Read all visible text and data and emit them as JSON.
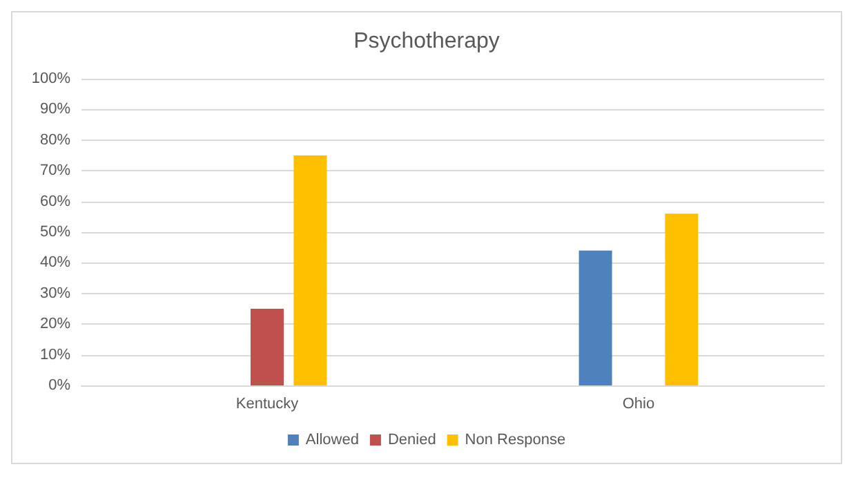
{
  "chart_data": {
    "type": "bar",
    "title": "Psychotherapy",
    "categories": [
      "Kentucky",
      "Ohio"
    ],
    "series": [
      {
        "name": "Allowed",
        "color": "#4f81bd",
        "values": [
          0,
          44
        ]
      },
      {
        "name": "Denied",
        "color": "#c0504d",
        "values": [
          25,
          0
        ]
      },
      {
        "name": "Non Response",
        "color": "#ffc000",
        "values": [
          75,
          56
        ]
      }
    ],
    "ylim": [
      0,
      100
    ],
    "yticks": [
      {
        "value": 0,
        "label": "0%"
      },
      {
        "value": 10,
        "label": "10%"
      },
      {
        "value": 20,
        "label": "20%"
      },
      {
        "value": 30,
        "label": "30%"
      },
      {
        "value": 40,
        "label": "40%"
      },
      {
        "value": 50,
        "label": "50%"
      },
      {
        "value": 60,
        "label": "60%"
      },
      {
        "value": 70,
        "label": "70%"
      },
      {
        "value": 80,
        "label": "80%"
      },
      {
        "value": 90,
        "label": "90%"
      },
      {
        "value": 100,
        "label": "100%"
      }
    ],
    "grid": "y",
    "legend": "bottom"
  }
}
